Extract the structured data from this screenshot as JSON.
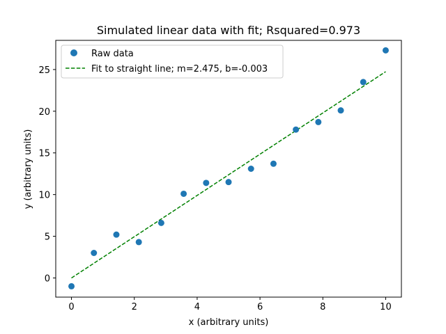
{
  "chart_data": {
    "type": "scatter",
    "title": "Simulated linear data with fit; Rsquared=0.973",
    "xlabel": "x (arbitrary units)",
    "ylabel": "y (arbitrary units)",
    "xlim": [
      -0.5,
      10.5
    ],
    "ylim": [
      -2.3,
      28.5
    ],
    "xticks": [
      0,
      2,
      4,
      6,
      8,
      10
    ],
    "yticks": [
      0,
      5,
      10,
      15,
      20,
      25
    ],
    "grid": false,
    "legend_position": "top-left",
    "series": [
      {
        "name": "Raw data",
        "kind": "scatter",
        "color": "#1f77b4",
        "x": [
          0,
          0.714,
          1.429,
          2.143,
          2.857,
          3.571,
          4.286,
          5.0,
          5.714,
          6.429,
          7.143,
          7.857,
          8.571,
          9.286,
          10.0
        ],
        "y": [
          -1.0,
          3.0,
          5.2,
          4.3,
          6.6,
          10.1,
          11.4,
          11.5,
          13.1,
          13.7,
          17.8,
          18.7,
          20.1,
          23.5,
          27.3
        ]
      },
      {
        "name": "Fit to straight line; m=2.475, b=-0.003",
        "kind": "line",
        "style": "dashed",
        "color": "#008000",
        "x": [
          0,
          10
        ],
        "y": [
          -0.003,
          24.747
        ]
      }
    ]
  }
}
